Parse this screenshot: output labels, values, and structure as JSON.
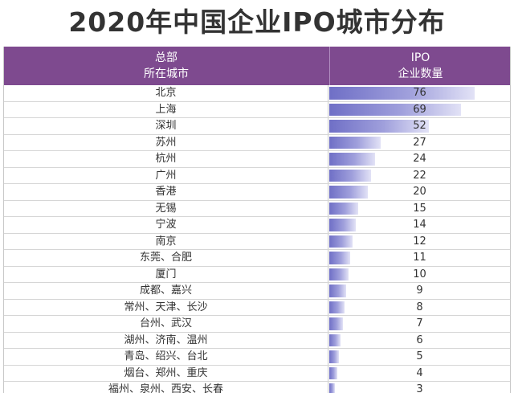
{
  "title": "2020年中国企业IPO城市分布",
  "header": {
    "city_line1": "总部",
    "city_line2": "所在城市",
    "ipo_line1": "IPO",
    "ipo_line2": "企业数量"
  },
  "colors": {
    "header_bg": "#7e4a8f",
    "bar": "#8c8cd4"
  },
  "chart_data": {
    "type": "bar",
    "title": "2020年中国企业IPO城市分布",
    "xlabel": "总部所在城市",
    "ylabel": "IPO企业数量",
    "categories": [
      "北京",
      "上海",
      "深圳",
      "苏州",
      "杭州",
      "广州",
      "香港",
      "无锡",
      "宁波",
      "南京",
      "东莞、合肥",
      "厦门",
      "成都、嘉兴",
      "常州、天津、长沙",
      "台州、武汉",
      "湖州、济南、温州",
      "青岛、绍兴、台北",
      "烟台、郑州、重庆",
      "福州、泉州、西安、长春"
    ],
    "values": [
      76,
      69,
      52,
      27,
      24,
      22,
      20,
      15,
      14,
      12,
      11,
      10,
      9,
      8,
      7,
      6,
      5,
      4,
      3
    ],
    "ylim": [
      0,
      80
    ]
  }
}
